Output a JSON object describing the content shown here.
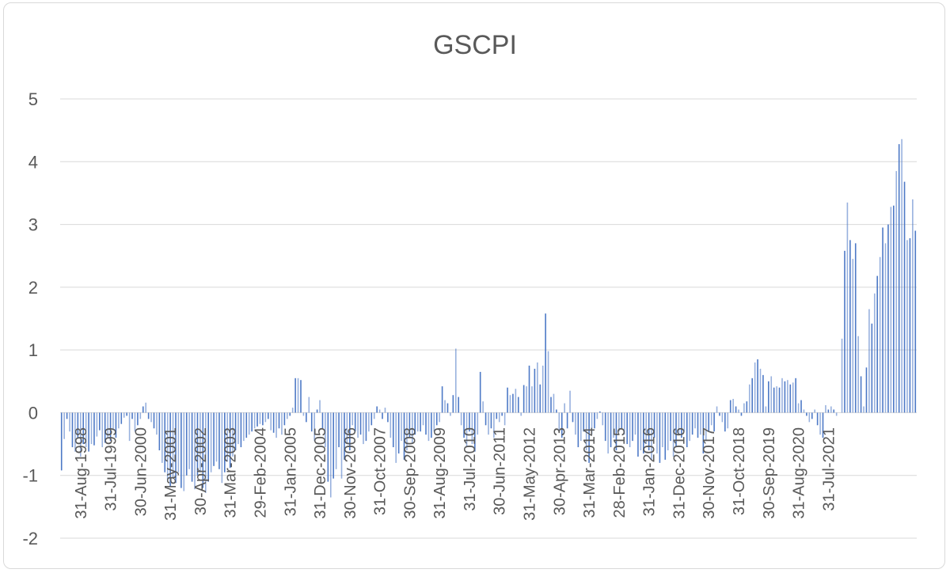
{
  "chart_data": {
    "type": "bar",
    "title": "GSCPI",
    "xlabel": "",
    "ylabel": "",
    "ylim": [
      -2,
      5
    ],
    "yticks": [
      5,
      4,
      3,
      2,
      1,
      0,
      -1,
      -2
    ],
    "grid": true,
    "legend": "none",
    "bar_color": "#4472c4",
    "start_month": "1998-01",
    "tick_labels": [
      "31-Aug-1998",
      "31-Jul-1999",
      "30-Jun-2000",
      "31-May-2001",
      "30-Apr-2002",
      "31-Mar-2003",
      "29-Feb-2004",
      "31-Jan-2005",
      "31-Dec-2005",
      "30-Nov-2006",
      "31-Oct-2007",
      "30-Sep-2008",
      "31-Aug-2009",
      "31-Jul-2010",
      "30-Jun-2011",
      "31-May-2012",
      "30-Apr-2013",
      "31-Mar-2014",
      "28-Feb-2015",
      "31-Jan-2016",
      "31-Dec-2016",
      "30-Nov-2017",
      "31-Oct-2018",
      "30-Sep-2019",
      "31-Aug-2020",
      "31-Jul-2021"
    ],
    "values": [
      -0.92,
      -0.42,
      -0.1,
      -0.3,
      -0.55,
      -0.62,
      -0.4,
      -0.7,
      -0.5,
      -0.55,
      -0.62,
      -0.5,
      -0.52,
      -0.38,
      -0.28,
      -0.55,
      -0.48,
      -0.4,
      -0.45,
      -0.28,
      -0.4,
      -0.25,
      -0.18,
      -0.08,
      -0.05,
      -0.45,
      -0.1,
      -0.3,
      -0.2,
      -0.1,
      0.1,
      0.16,
      -0.1,
      -0.15,
      -0.25,
      -0.35,
      -0.6,
      -0.8,
      -0.95,
      -1.1,
      -1.18,
      -1.05,
      -1.12,
      -0.95,
      -1.2,
      -1.25,
      -1.0,
      -0.9,
      -1.1,
      -1.22,
      -1.0,
      -0.95,
      -1.2,
      -1.28,
      -1.1,
      -0.95,
      -0.85,
      -0.78,
      -0.9,
      -1.12,
      -0.95,
      -0.78,
      -0.88,
      -0.7,
      -0.6,
      -0.5,
      -0.55,
      -0.45,
      -0.4,
      -0.35,
      -0.3,
      -0.25,
      -0.22,
      -0.18,
      -0.2,
      -0.15,
      -0.1,
      -0.28,
      -0.32,
      -0.4,
      -0.25,
      -0.35,
      -0.2,
      -0.1,
      -0.05,
      0.08,
      0.55,
      0.55,
      0.52,
      -0.05,
      -0.15,
      0.25,
      -0.3,
      -0.45,
      0.05,
      0.2,
      -0.25,
      -0.55,
      -1.1,
      -1.35,
      -1.05,
      -0.9,
      -0.55,
      -1.05,
      -0.75,
      -0.5,
      -0.6,
      -0.2,
      -0.3,
      -0.4,
      -0.35,
      -0.5,
      -0.45,
      -0.3,
      -0.2,
      -0.1,
      0.1,
      0.05,
      -0.1,
      0.08,
      -0.15,
      -0.4,
      -0.55,
      -0.8,
      -0.65,
      -0.45,
      -0.75,
      -0.6,
      -0.4,
      -0.5,
      -0.35,
      -0.3,
      -0.3,
      -0.2,
      -0.35,
      -0.45,
      -0.4,
      -0.3,
      -0.2,
      -0.15,
      0.42,
      0.2,
      0.15,
      -0.05,
      0.28,
      1.02,
      0.25,
      -0.2,
      -0.4,
      -0.55,
      -0.3,
      -0.5,
      -0.62,
      -0.35,
      0.65,
      0.18,
      -0.2,
      -0.35,
      -0.25,
      -0.4,
      -0.1,
      -0.15,
      -0.05,
      -0.2,
      0.4,
      0.28,
      0.3,
      0.38,
      0.25,
      -0.05,
      0.44,
      0.42,
      0.75,
      0.42,
      0.7,
      0.8,
      0.45,
      0.75,
      1.58,
      0.98,
      0.25,
      0.3,
      0.05,
      -0.3,
      -0.4,
      0.15,
      -0.25,
      0.35,
      -0.15,
      -0.35,
      -0.55,
      -0.45,
      -0.3,
      -0.6,
      -0.8,
      -0.35,
      -0.25,
      -0.1,
      0.02,
      -0.2,
      -0.45,
      -0.65,
      -0.55,
      -0.4,
      -0.6,
      -0.3,
      -0.25,
      -0.35,
      -0.5,
      -0.55,
      -0.45,
      -0.35,
      -0.7,
      -0.6,
      -0.65,
      -0.5,
      -0.6,
      -0.75,
      -0.4,
      -0.65,
      -0.8,
      -0.55,
      -0.75,
      -0.6,
      -0.45,
      -0.7,
      -0.55,
      -0.35,
      -0.4,
      -0.3,
      -0.55,
      -0.45,
      -0.35,
      -0.25,
      -0.4,
      -0.35,
      -0.65,
      -0.45,
      -0.3,
      -0.2,
      -0.3,
      0.1,
      -0.05,
      -0.15,
      -0.3,
      -0.25,
      0.2,
      0.22,
      0.1,
      0.05,
      -0.05,
      0.15,
      0.18,
      0.45,
      0.55,
      0.8,
      0.85,
      0.7,
      0.6,
      0.1,
      0.5,
      0.58,
      0.4,
      0.42,
      0.4,
      0.55,
      0.5,
      0.52,
      0.45,
      0.48,
      0.55,
      0.15,
      0.2,
      0.05,
      -0.05,
      -0.15,
      -0.1,
      0.05,
      -0.2,
      -0.35,
      -0.4,
      0.12,
      0.05,
      0.1,
      0.05,
      -0.05,
      0.0,
      1.18,
      2.58,
      3.35,
      2.75,
      2.45,
      2.7,
      1.22,
      0.58,
      0.1,
      0.72,
      1.65,
      1.42,
      1.9,
      2.18,
      2.48,
      2.95,
      2.7,
      3.0,
      3.28,
      3.3,
      3.85,
      4.28,
      4.36,
      3.68,
      2.75,
      2.78,
      3.4,
      2.9
    ]
  }
}
